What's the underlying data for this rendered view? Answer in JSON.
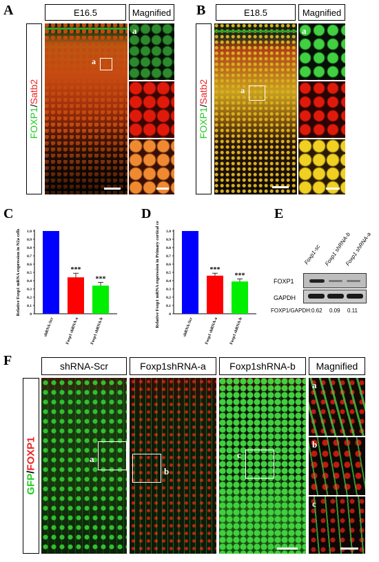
{
  "panel_letters": {
    "a": "A",
    "b": "B",
    "c": "C",
    "d": "D",
    "e": "E",
    "f": "F"
  },
  "panel_a": {
    "header": "E16.5",
    "magnified": "Magnified",
    "label_green": "FOXP1",
    "label_sep": "/",
    "label_red": "Satb2",
    "inset": "a"
  },
  "panel_b": {
    "header": "E18.5",
    "magnified": "Magnified",
    "label_green": "FOXP1",
    "label_sep": "/",
    "label_red": "Satb2",
    "inset": "a"
  },
  "panel_e": {
    "lanes": [
      "Foxp1-sc",
      "Foxp1 shRNA-b",
      "Foxp1 shRNA-a"
    ],
    "row1": "FOXP1",
    "row2": "GAPDH",
    "ratio_label": "FOXP1/GAPDH:",
    "ratios": [
      "0.62",
      "0.09",
      "0.11"
    ]
  },
  "panel_f": {
    "headers": [
      "shRNA-Scr",
      "Foxp1shRNA-a",
      "Foxp1shRNA-b",
      "Magnified"
    ],
    "label_green": "GFP",
    "label_sep": "/",
    "label_red": "FOXP1",
    "insets": [
      "a",
      "b",
      "c"
    ]
  },
  "chart_data": [
    {
      "type": "bar",
      "title": "",
      "ylabel": "Relative Foxp1 mRNA expression in N2a cells",
      "ylim": [
        0,
        1.0
      ],
      "yticks": [
        "0",
        "0.1",
        "0.2",
        "0.3",
        "0.4",
        "0.5",
        "0.6",
        "0.7",
        "0.8",
        "0.9",
        "1.0"
      ],
      "categories": [
        "shRNA-Scr",
        "Foxp1 shRNA-a",
        "Foxp1 shRNA-b"
      ],
      "values": [
        1.0,
        0.44,
        0.34
      ],
      "errors": [
        0,
        0.05,
        0.04
      ],
      "significance": [
        "",
        "***",
        "***"
      ],
      "colors": [
        "#0000ff",
        "#ff0000",
        "#00ee00"
      ]
    },
    {
      "type": "bar",
      "title": "",
      "ylabel": "Relative Foxp1 mRNA expression in Primary cortical cells",
      "ylim": [
        0,
        1.0
      ],
      "yticks": [
        "0",
        "0.1",
        "0.2",
        "0.3",
        "0.4",
        "0.5",
        "0.6",
        "0.7",
        "0.8",
        "0.9",
        "1.0"
      ],
      "categories": [
        "shRNA-Scr",
        "Foxp1 shRNA-a",
        "Foxp1 shRNA-b"
      ],
      "values": [
        1.0,
        0.46,
        0.39
      ],
      "errors": [
        0,
        0.03,
        0.03
      ],
      "significance": [
        "",
        "***",
        "***"
      ],
      "colors": [
        "#0000ff",
        "#ff0000",
        "#00ee00"
      ]
    }
  ]
}
